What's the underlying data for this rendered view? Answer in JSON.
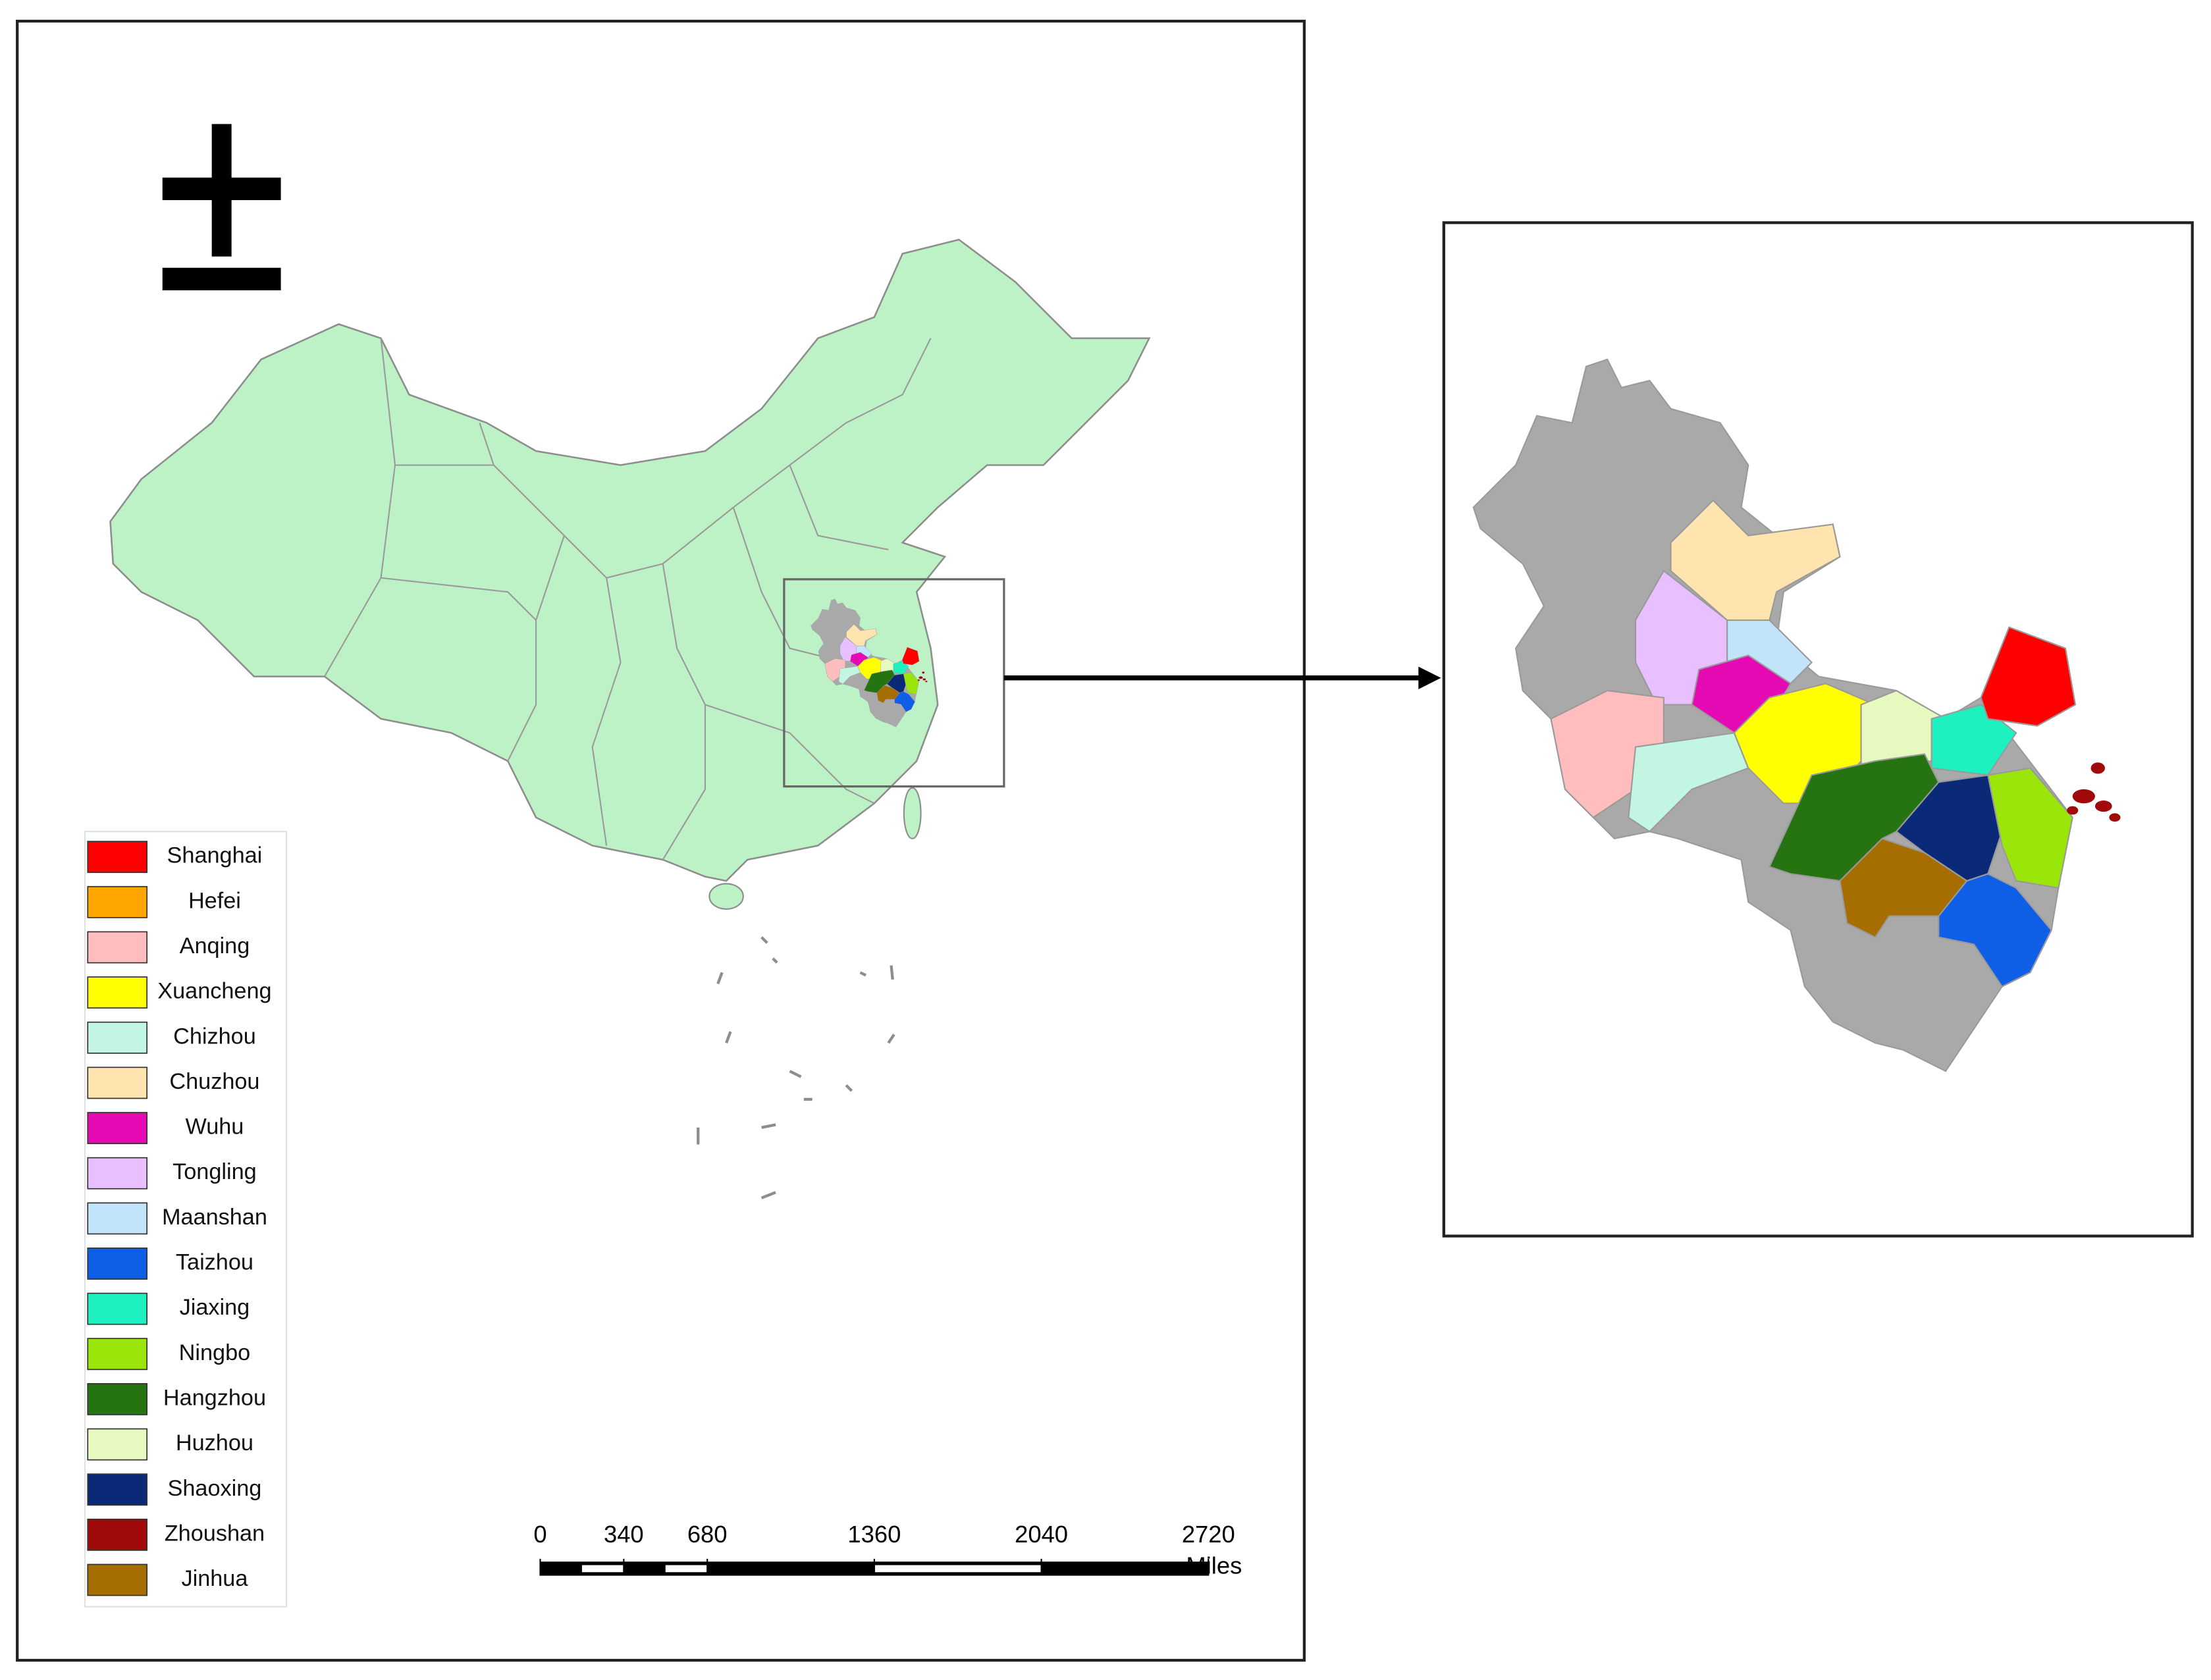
{
  "legend": {
    "items": [
      {
        "name": "Shanghai",
        "color": "#ff0000"
      },
      {
        "name": "Hefei",
        "color": "#ffa500"
      },
      {
        "name": "Anqing",
        "color": "#ffbdbd"
      },
      {
        "name": "Xuancheng",
        "color": "#ffff00"
      },
      {
        "name": "Chizhou",
        "color": "#c2f5e2"
      },
      {
        "name": "Chuzhou",
        "color": "#ffe4b0"
      },
      {
        "name": "Wuhu",
        "color": "#e60ab4"
      },
      {
        "name": "Tongling",
        "color": "#e8c0ff"
      },
      {
        "name": "Maanshan",
        "color": "#c2e4fa"
      },
      {
        "name": "Taizhou",
        "color": "#0f5fe6"
      },
      {
        "name": "Jiaxing",
        "color": "#1ef0c0"
      },
      {
        "name": "Ningbo",
        "color": "#9be60a"
      },
      {
        "name": "Hangzhou",
        "color": "#267312"
      },
      {
        "name": "Huzhou",
        "color": "#e6fac0"
      },
      {
        "name": "Shaoxing",
        "color": "#0a2a78"
      },
      {
        "name": "Zhoushan",
        "color": "#a00a0a"
      },
      {
        "name": "Jinhua",
        "color": "#a66e00"
      }
    ]
  },
  "scale_bar": {
    "ticks": [
      0,
      340,
      680,
      1360,
      2040,
      2720
    ],
    "unit": "Miles"
  }
}
